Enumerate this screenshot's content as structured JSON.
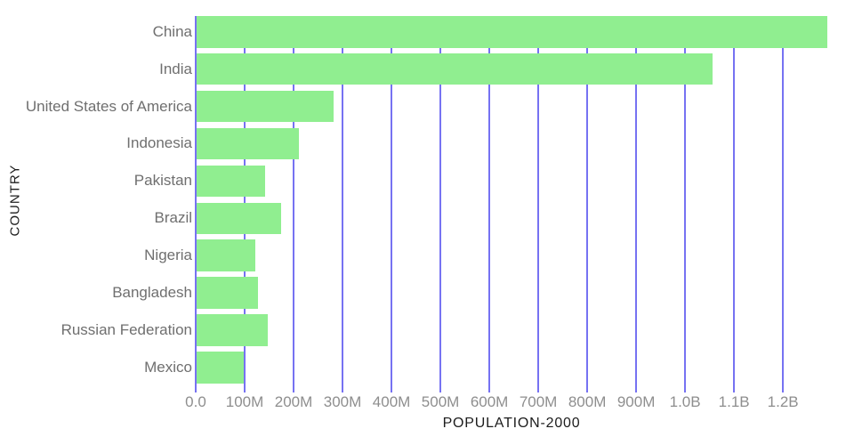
{
  "page": {
    "background_color": "#ffffff"
  },
  "chart_data": {
    "type": "bar",
    "orientation": "horizontal",
    "title": "",
    "xlabel": "POPULATION-2000",
    "ylabel": "COUNTRY",
    "categories": [
      "China",
      "India",
      "United States of America",
      "Indonesia",
      "Pakistan",
      "Brazil",
      "Nigeria",
      "Bangladesh",
      "Russian Federation",
      "Mexico"
    ],
    "values_millions": [
      1290.6,
      1056.6,
      281.7,
      211.5,
      142.3,
      174.8,
      122.3,
      127.7,
      146.4,
      98.9
    ],
    "xlim_millions": [
      0,
      1290.6
    ],
    "x_ticks": [
      {
        "label": "0.0",
        "value_millions": 0
      },
      {
        "label": "100M",
        "value_millions": 100
      },
      {
        "label": "200M",
        "value_millions": 200
      },
      {
        "label": "300M",
        "value_millions": 300
      },
      {
        "label": "400M",
        "value_millions": 400
      },
      {
        "label": "500M",
        "value_millions": 500
      },
      {
        "label": "600M",
        "value_millions": 600
      },
      {
        "label": "700M",
        "value_millions": 700
      },
      {
        "label": "800M",
        "value_millions": 800
      },
      {
        "label": "900M",
        "value_millions": 900
      },
      {
        "label": "1.0B",
        "value_millions": 1000
      },
      {
        "label": "1.1B",
        "value_millions": 1100
      },
      {
        "label": "1.2B",
        "value_millions": 1200
      }
    ],
    "grid": {
      "vertical": true,
      "horizontal": false
    },
    "legend": "none",
    "colors": {
      "bar": "#90EE90",
      "gridline": "#7672F2",
      "category_label": "#6F6F6F",
      "tick_label": "#8E8E8E",
      "axis_title": "#1C1C1C"
    }
  }
}
